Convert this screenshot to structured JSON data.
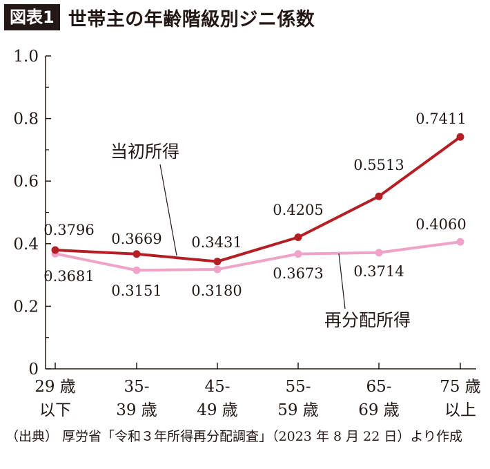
{
  "header": {
    "badge": "図表1",
    "title": "世帯主の年齢階級別ジニ係数"
  },
  "source": "（出典） 厚労省「令和３年所得再分配調査」（2023 年 8 月 22 日）より作成",
  "colors": {
    "initial": "#B41F24",
    "redistributed": "#EFA3C8",
    "axis": "#231815"
  },
  "chart_data": {
    "type": "line",
    "title": "世帯主の年齢階級別ジニ係数",
    "categories": [
      [
        "29 歳",
        "以下"
      ],
      [
        "35-",
        "39 歳"
      ],
      [
        "45-",
        "49 歳"
      ],
      [
        "55-",
        "59 歳"
      ],
      [
        "65-",
        "69 歳"
      ],
      [
        "75 歳",
        "以上"
      ]
    ],
    "yticks": [
      "0",
      "0.2",
      "0.4",
      "0.6",
      "0.8",
      "1.0"
    ],
    "ylim": [
      0,
      1.0
    ],
    "grid": false,
    "series": [
      {
        "name": "当初所得",
        "values": [
          0.3796,
          0.3669,
          0.3431,
          0.4205,
          0.5513,
          0.7411
        ],
        "labels": [
          "0.3796",
          "0.3669",
          "0.3431",
          "0.4205",
          "0.5513",
          "0.7411"
        ]
      },
      {
        "name": "再分配所得",
        "values": [
          0.3681,
          0.3151,
          0.318,
          0.3673,
          0.3714,
          0.406
        ],
        "labels": [
          "0.3681",
          "0.3151",
          "0.3180",
          "0.3673",
          "0.3714",
          "0.4060"
        ]
      }
    ]
  }
}
